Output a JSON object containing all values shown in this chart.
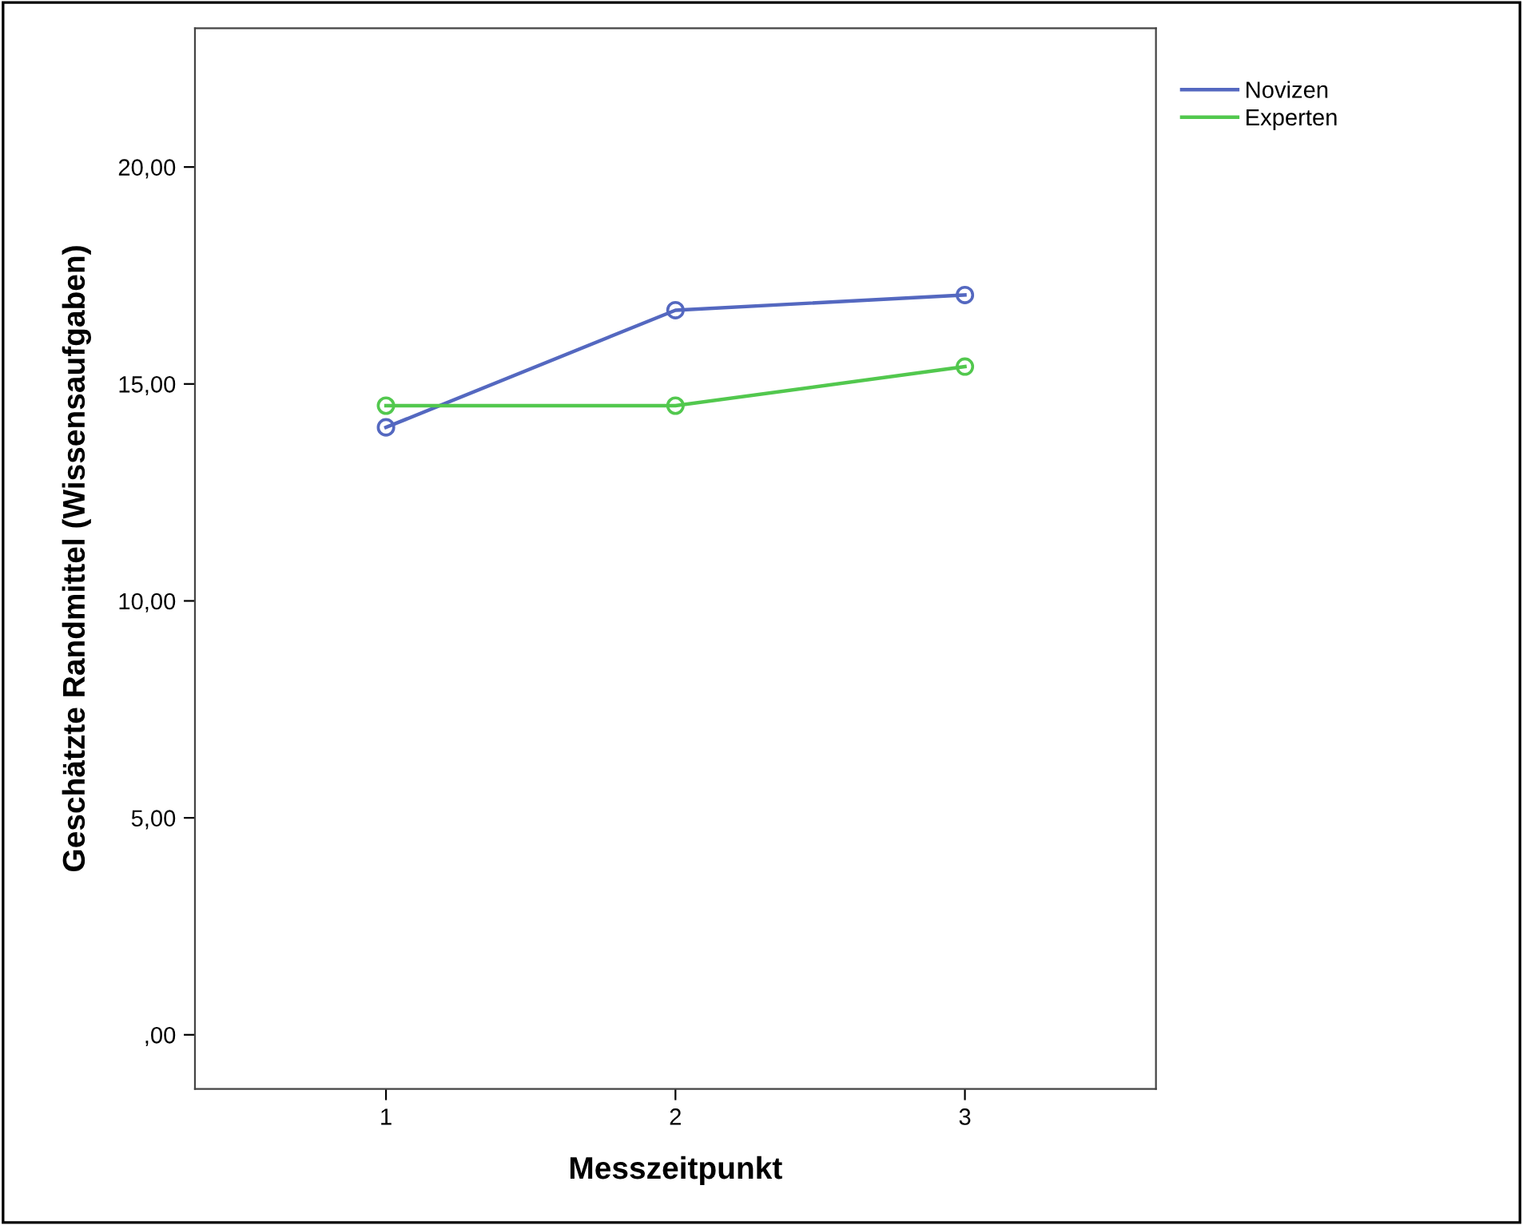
{
  "chart_data": {
    "type": "line",
    "xlabel": "Messzeitpunkt",
    "ylabel": "Geschätzte Randmittel (Wissensaufgaben)",
    "x": [
      1,
      2,
      3
    ],
    "xlim": [
      0.34,
      3.66
    ],
    "xticks": [
      1,
      2,
      3
    ],
    "ylim": [
      -1.25,
      23.2
    ],
    "yticks": [
      {
        "value": 0,
        "label": ",00"
      },
      {
        "value": 5,
        "label": "5,00"
      },
      {
        "value": 10,
        "label": "10,00"
      },
      {
        "value": 15,
        "label": "15,00"
      },
      {
        "value": 20,
        "label": "20,00"
      }
    ],
    "series": [
      {
        "name": "Novizen",
        "color": "#5468c0",
        "values": [
          14.0,
          16.7,
          17.05
        ]
      },
      {
        "name": "Experten",
        "color": "#52c84e",
        "values": [
          14.5,
          14.5,
          15.4
        ]
      }
    ],
    "marker": "circle",
    "line_style": "solid",
    "legend": "top right",
    "grid": false
  }
}
